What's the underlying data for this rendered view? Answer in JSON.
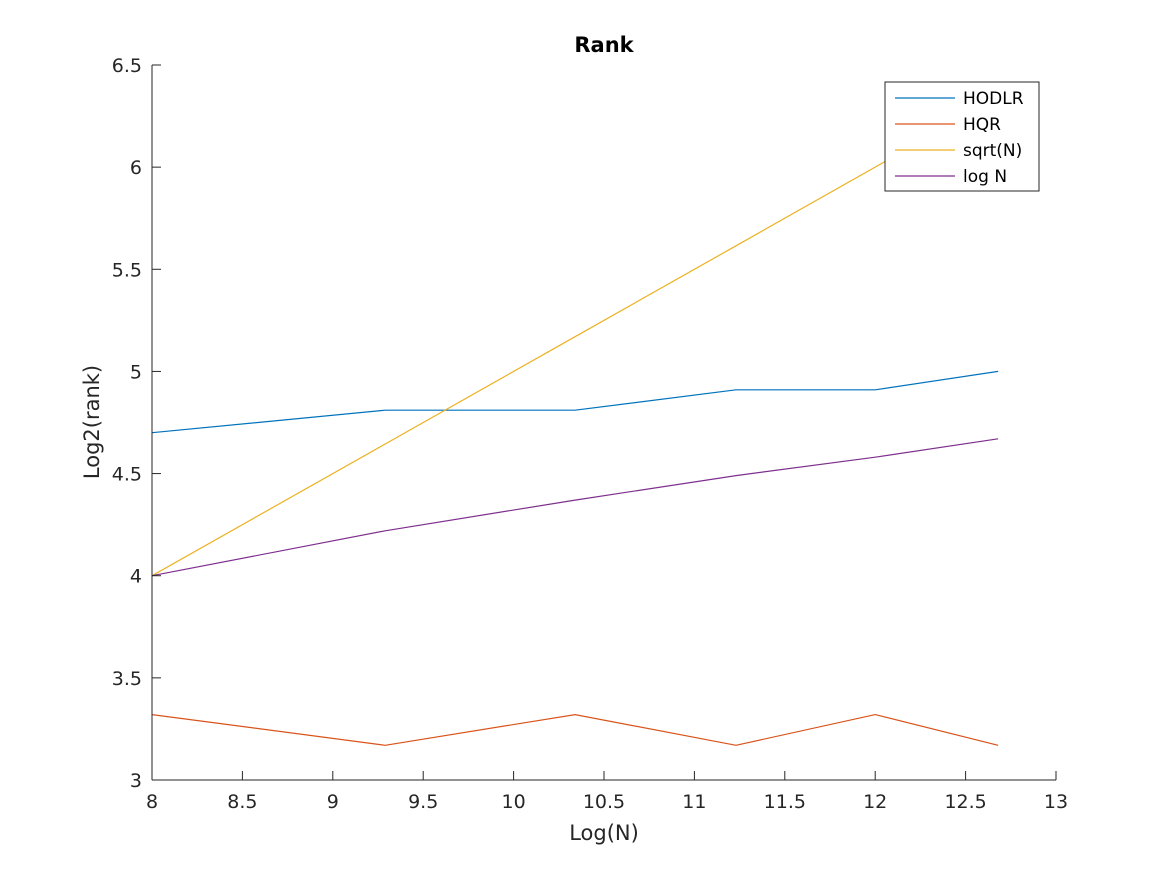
{
  "chart_data": {
    "type": "line",
    "title": "Rank",
    "xlabel": "Log(N)",
    "ylabel": "Log2(rank)",
    "xlim": [
      8,
      13
    ],
    "ylim": [
      3,
      6.5
    ],
    "xticks": [
      "8",
      "8.5",
      "9",
      "9.5",
      "10",
      "10.5",
      "11",
      "11.5",
      "12",
      "12.5",
      "13"
    ],
    "yticks": [
      "3",
      "3.5",
      "4",
      "4.5",
      "5",
      "5.5",
      "6",
      "6.5"
    ],
    "grid": false,
    "legend_position": "top-right",
    "series": [
      {
        "name": "HODLR",
        "color": "#0072BD",
        "x": [
          8,
          9.29,
          10.34,
          11.23,
          12,
          12.68
        ],
        "y": [
          4.7,
          4.81,
          4.81,
          4.91,
          4.91,
          5.0
        ]
      },
      {
        "name": "HQR",
        "color": "#D95319",
        "x": [
          8,
          9.29,
          10.34,
          11.23,
          12,
          12.68
        ],
        "y": [
          3.32,
          3.17,
          3.32,
          3.17,
          3.32,
          3.17
        ]
      },
      {
        "name": "sqrt(N)",
        "color": "#EDB120",
        "x": [
          8,
          9.29,
          10.34,
          11.23,
          12,
          12.68
        ],
        "y": [
          4.0,
          4.645,
          5.17,
          5.615,
          6.0,
          6.34
        ]
      },
      {
        "name": "log N",
        "color": "#7E2F8E",
        "x": [
          8,
          9.29,
          10.34,
          11.23,
          12,
          12.68
        ],
        "y": [
          4.0,
          4.22,
          4.37,
          4.49,
          4.58,
          4.67
        ]
      }
    ]
  }
}
